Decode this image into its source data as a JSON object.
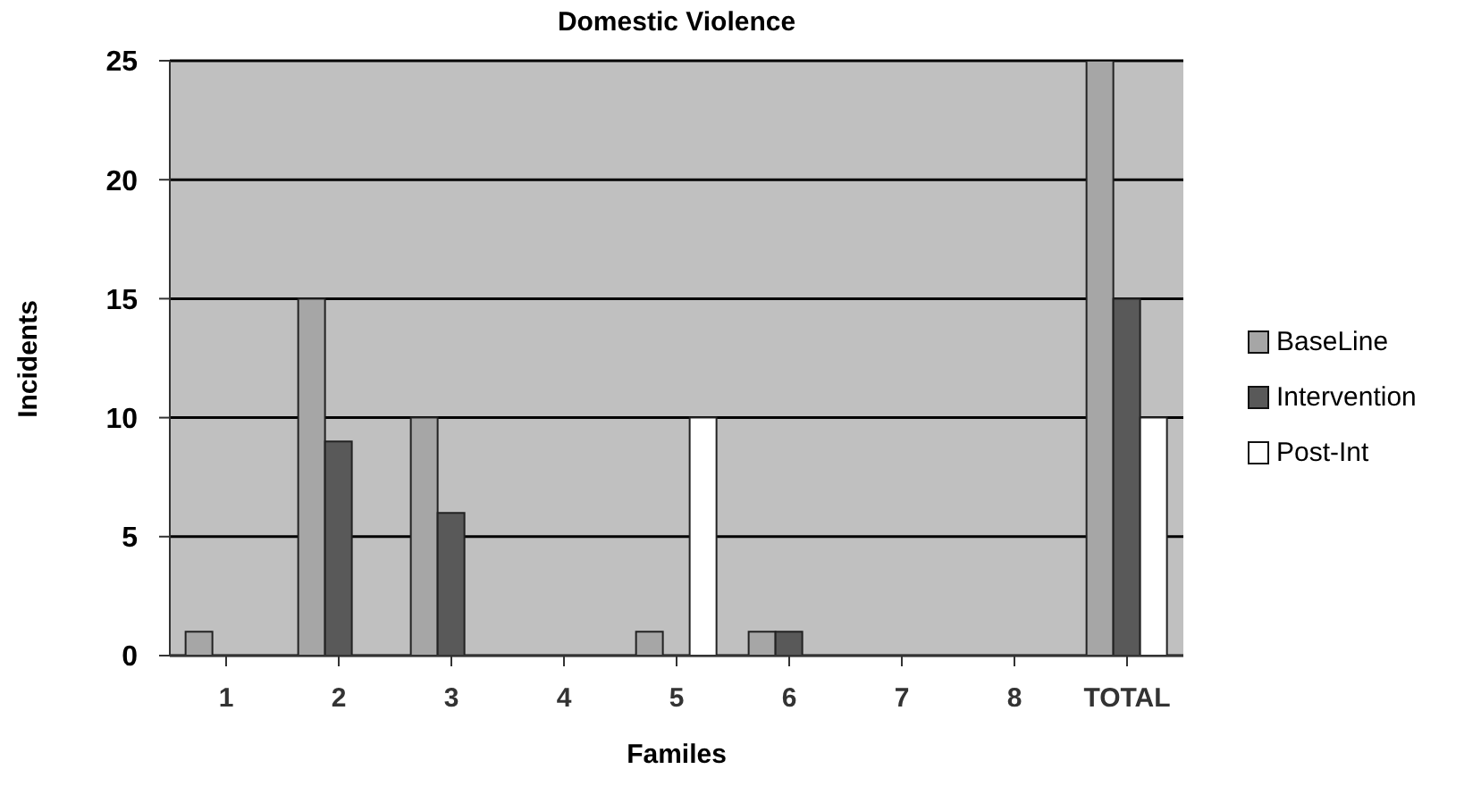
{
  "chart_data": {
    "type": "bar",
    "title": "Domestic Violence",
    "xlabel": "Familes",
    "ylabel": "Incidents",
    "categories": [
      "1",
      "2",
      "3",
      "4",
      "5",
      "6",
      "7",
      "8",
      "TOTAL"
    ],
    "series": [
      {
        "name": "BaseLine",
        "color": "#a6a6a6",
        "values": [
          1,
          15,
          10,
          0,
          1,
          1,
          0,
          0,
          25
        ]
      },
      {
        "name": "Intervention",
        "color": "#595959",
        "values": [
          0,
          9,
          6,
          0,
          0,
          1,
          0,
          0,
          15
        ]
      },
      {
        "name": "Post-Int",
        "color": "#ffffff",
        "values": [
          0,
          0,
          0,
          0,
          10,
          0,
          0,
          0,
          10
        ]
      }
    ],
    "ylim": [
      0,
      25
    ],
    "yticks": [
      0,
      5,
      10,
      15,
      20,
      25
    ],
    "grid": "y",
    "legend": "right"
  }
}
